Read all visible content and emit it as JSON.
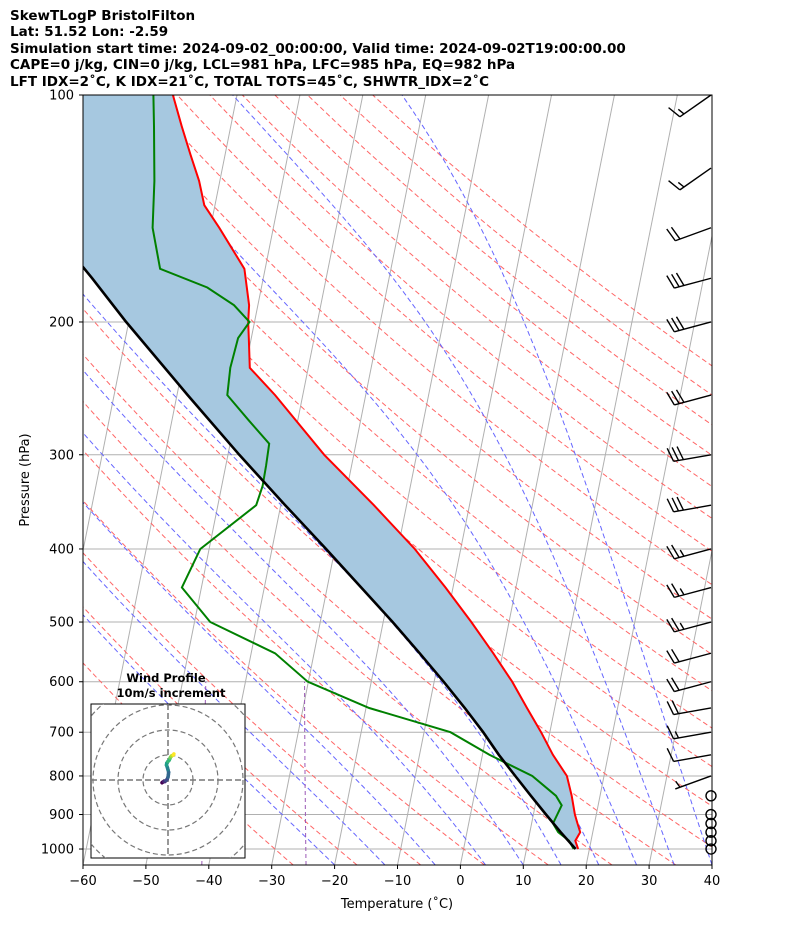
{
  "header": {
    "line1": "SkewTLogP BristolFilton",
    "line2": "Lat: 51.52   Lon: -2.59",
    "line3": "Simulation start time: 2024-09-02_00:00:00, Valid time: 2024-09-02T19:00:00.00",
    "line4": "CAPE=0 j/kg, CIN=0 j/kg, LCL=981 hPa, LFC=985 hPa, EQ=982 hPa",
    "line5": "LFT IDX=2˚C, K IDX=21˚C, TOTAL TOTS=45˚C, SHWTR_IDX=2˚C"
  },
  "chart_data": {
    "type": "line",
    "skew_t": true,
    "xlabel": "Temperature (˚C)",
    "ylabel": "Pressure (hPa)",
    "xlim": [
      -60,
      40
    ],
    "ylim": [
      1050,
      100
    ],
    "xticks": [
      "−60",
      "−50",
      "−40",
      "−30",
      "−20",
      "−10",
      "0",
      "10",
      "20",
      "30",
      "40"
    ],
    "yticks": [
      "1000",
      "900",
      "800",
      "700",
      "600",
      "500",
      "400",
      "300",
      "200",
      "100"
    ],
    "grid": true,
    "colors": {
      "temperature": "#ff0000",
      "dewpoint": "#008000",
      "parcel": "#000000",
      "cape_shade": "#a6c8e0",
      "dry_adiabat": "#ff6666",
      "moist_adiabat": "#6666ff",
      "mixing_ratio": "#9b59b6",
      "isotherm": "#b0b0b0"
    },
    "series": [
      {
        "name": "temperature",
        "pressure": [
          1000,
          975,
          950,
          925,
          900,
          850,
          800,
          750,
          700,
          650,
          600,
          550,
          500,
          450,
          400,
          350,
          300,
          250,
          230,
          210,
          200,
          190,
          170,
          150,
          140,
          130,
          120,
          110,
          100
        ],
        "temp": [
          18.2,
          17.5,
          18.0,
          17.3,
          16.6,
          15.5,
          14.1,
          11.2,
          8.6,
          5.6,
          2.4,
          -1.5,
          -6.0,
          -11.2,
          -17.3,
          -25.2,
          -34.7,
          -44.4,
          -49.3,
          -50.4,
          -51.0,
          -51.4,
          -53.3,
          -58.6,
          -61.7,
          -63.3,
          -65.5,
          -67.8,
          -70.2
        ]
      },
      {
        "name": "dewpoint",
        "pressure": [
          1000,
          975,
          950,
          925,
          900,
          875,
          850,
          800,
          750,
          700,
          650,
          600,
          550,
          500,
          450,
          400,
          350,
          330,
          310,
          290,
          270,
          250,
          230,
          210,
          200,
          190,
          180,
          170,
          150,
          130,
          110,
          100
        ],
        "temp": [
          17.5,
          16.5,
          14.5,
          13.4,
          13.8,
          14.2,
          13.0,
          8.6,
          1.1,
          -5.8,
          -19.5,
          -30.1,
          -36.2,
          -47.5,
          -53.1,
          -51.4,
          -43.9,
          -43.5,
          -43.6,
          -43.8,
          -47.8,
          -52.0,
          -52.4,
          -52.1,
          -50.8,
          -53.8,
          -58.6,
          -66.7,
          -69.2,
          -70.4,
          -72.2,
          -73.3
        ]
      },
      {
        "name": "parcel",
        "pressure": [
          1000,
          950,
          900,
          850,
          800,
          750,
          700,
          650,
          600,
          550,
          500,
          450,
          400,
          350,
          300,
          250,
          200,
          175,
          150,
          125,
          100
        ],
        "temp": [
          17.8,
          14.9,
          12.0,
          9.0,
          5.9,
          2.6,
          -0.6,
          -4.3,
          -8.5,
          -13.2,
          -18.5,
          -24.6,
          -31.4,
          -39.3,
          -48.2,
          -58.3,
          -70.4,
          -77.2,
          -85.4,
          -95.0,
          -107.0
        ]
      }
    ],
    "hodograph": {
      "title": "Wind Profile",
      "subtitle": "10m/s increment",
      "rings": 4,
      "u": [
        -0.8,
        -0.5,
        0.1,
        0.7,
        1.5,
        2.3,
        3.3,
        4.0,
        4.3,
        4.5,
        4.0,
        3.5,
        2.8,
        3.0,
        3.9,
        4.8,
        5.3,
        5.7,
        6.2,
        6.8,
        7.5,
        8.2,
        8.5,
        8.7
      ],
      "v": [
        0.2,
        0.5,
        0.9,
        1.3,
        1.2,
        1.9,
        3.0,
        4.7,
        6.6,
        8.6,
        10.6,
        12.4,
        14.3,
        15.8,
        17.2,
        18.0,
        19.0,
        20.1,
        20.9,
        21.6,
        22.0,
        22.4,
        22.8,
        23.3
      ]
    },
    "wind_barbs": {
      "pressure": [
        1000,
        975,
        950,
        925,
        900,
        850,
        800,
        750,
        700,
        650,
        600,
        550,
        500,
        450,
        400,
        350,
        300,
        250,
        200,
        175,
        150,
        125,
        100
      ],
      "speed_kt": [
        1,
        2,
        0,
        0,
        0,
        0,
        5,
        10,
        15,
        20,
        20,
        20,
        25,
        25,
        25,
        30,
        30,
        30,
        30,
        30,
        20,
        15,
        15
      ],
      "dir_deg": [
        230,
        200,
        0,
        0,
        0,
        0,
        250,
        260,
        260,
        260,
        255,
        255,
        255,
        255,
        255,
        260,
        260,
        255,
        255,
        255,
        250,
        235,
        235
      ]
    }
  }
}
